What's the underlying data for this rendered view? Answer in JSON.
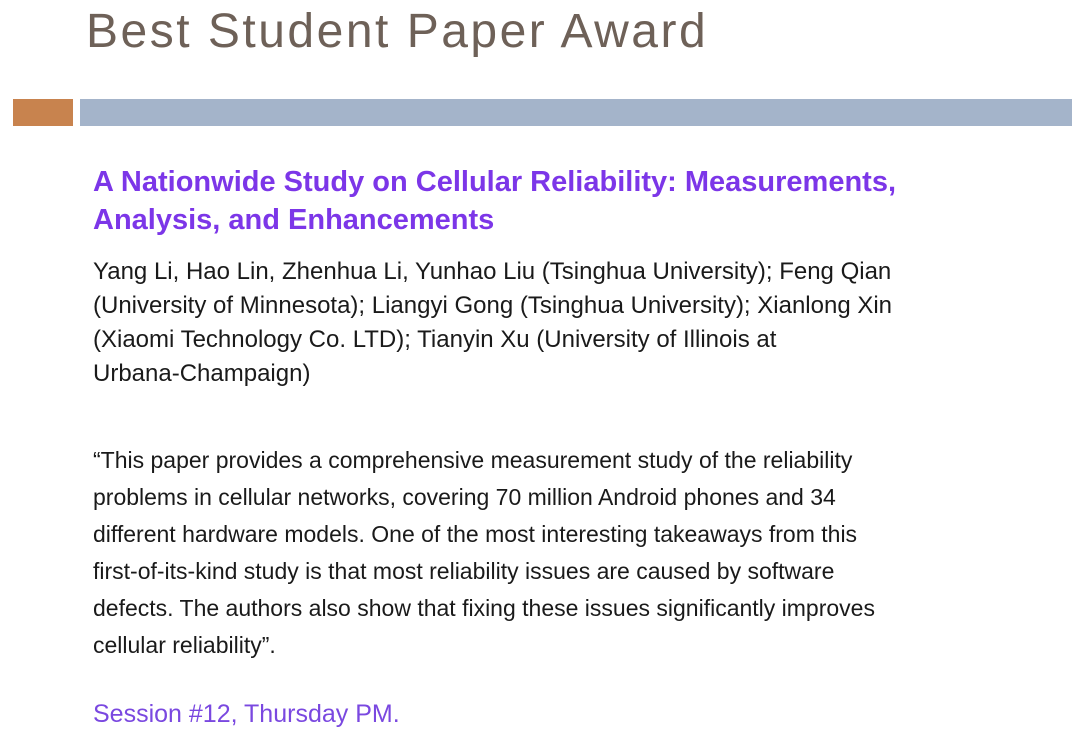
{
  "slide": {
    "title": "Best Student Paper Award",
    "paper": {
      "heading": "A Nationwide Study on Cellular Reliability: Measurements,\nAnalysis, and Enhancements",
      "authors": "Yang Li, Hao Lin, Zhenhua Li, Yunhao Liu (Tsinghua University); Feng Qian\n(University of Minnesota); Liangyi Gong (Tsinghua University); Xianlong Xin\n(Xiaomi Technology Co. LTD); Tianyin Xu (University of Illinois at\nUrbana-Champaign)"
    },
    "citation": "“This paper provides a comprehensive measurement study of the reliability\nproblems in cellular networks, covering 70 million Android phones and 34\ndifferent hardware models. One of the most interesting takeaways from this\nfirst-of-its-kind study is that most reliability issues are caused by software\ndefects. The authors also show that fixing these issues significantly improves\ncellular reliability”.",
    "session": "Session #12, Thursday PM."
  },
  "colors": {
    "background": "#ffffff",
    "title_text": "#6e6158",
    "accent_square": "#c8834e",
    "accent_bar": "#a4b4ca",
    "paper_heading": "#7c36e8",
    "body_text": "#1a1a1a",
    "session_text": "#7a48e0"
  }
}
